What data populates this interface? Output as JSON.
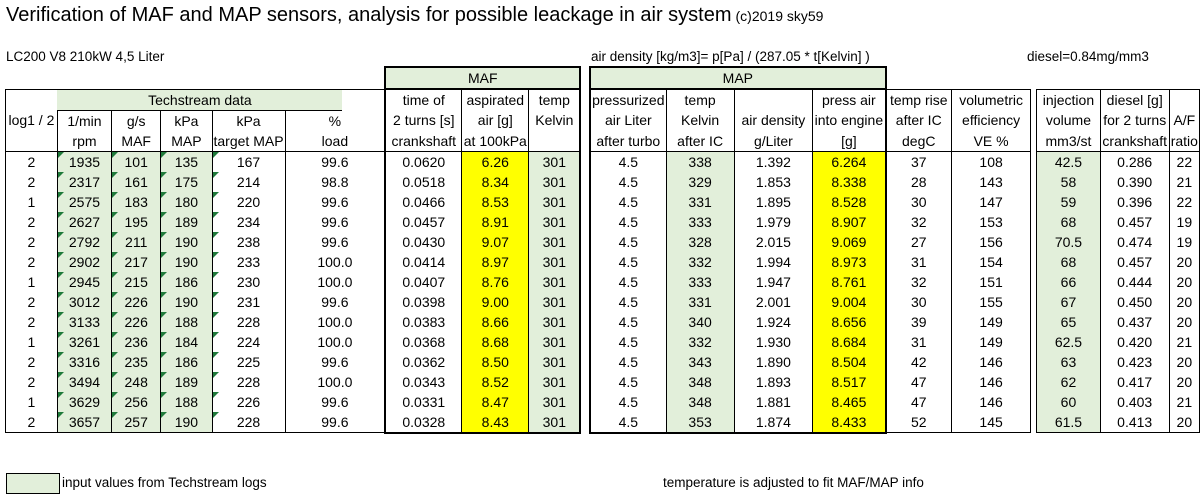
{
  "title": "Verification of MAF and MAP sensors, analysis for possible leackage in air system",
  "copyright": "(c)2019 sky59",
  "vehicle": "LC200 V8 210kW  4,5 Liter",
  "formula": "air density [kg/m3]= p[Pa] / (287.05 * t[Kelvin] )",
  "diesel_density": "diesel=0.84mg/mm3",
  "groups": {
    "maf": "MAF",
    "map": "MAP",
    "techstream": "Techstream data"
  },
  "headers": {
    "log": [
      "log1 / 2",
      ""
    ],
    "rpm": [
      "1/min",
      "rpm"
    ],
    "maf": [
      "g/s",
      "MAF"
    ],
    "map": [
      "kPa",
      "MAP"
    ],
    "target_map": [
      "kPa",
      "target MAP"
    ],
    "load": [
      "%",
      "load"
    ],
    "time": [
      "time of",
      "2 turns [s]",
      "crankshaft"
    ],
    "aspirated": [
      "aspirated",
      "air [g]",
      "at 100kPa"
    ],
    "temp1": [
      "temp",
      "Kelvin",
      ""
    ],
    "pressurized": [
      "pressurized",
      "air Liter",
      "after turbo"
    ],
    "temp2": [
      "temp",
      "Kelvin",
      "after IC"
    ],
    "density": [
      "",
      "air density",
      "g/Liter"
    ],
    "press_air": [
      "press air",
      "into engine",
      "[g]"
    ],
    "temp_rise": [
      "temp rise",
      "after IC",
      "degC"
    ],
    "ve": [
      "volumetric",
      "efficiency",
      "VE %"
    ],
    "injection": [
      "injection",
      "volume",
      "mm3/st"
    ],
    "diesel": [
      "diesel [g]",
      "for 2 turns",
      "crankshaft"
    ],
    "af": [
      "",
      "A/F",
      "ratio"
    ]
  },
  "rows": [
    [
      "2",
      "1935",
      "101",
      "135",
      "167",
      "99.6",
      "0.0620",
      "6.26",
      "301",
      "4.5",
      "338",
      "1.392",
      "6.264",
      "37",
      "108",
      "42.5",
      "0.286",
      "22"
    ],
    [
      "2",
      "2317",
      "161",
      "175",
      "214",
      "98.8",
      "0.0518",
      "8.34",
      "301",
      "4.5",
      "329",
      "1.853",
      "8.338",
      "28",
      "143",
      "58",
      "0.390",
      "21"
    ],
    [
      "1",
      "2575",
      "183",
      "180",
      "220",
      "99.6",
      "0.0466",
      "8.53",
      "301",
      "4.5",
      "331",
      "1.895",
      "8.528",
      "30",
      "147",
      "59",
      "0.396",
      "22"
    ],
    [
      "2",
      "2627",
      "195",
      "189",
      "234",
      "99.6",
      "0.0457",
      "8.91",
      "301",
      "4.5",
      "333",
      "1.979",
      "8.907",
      "32",
      "153",
      "68",
      "0.457",
      "19"
    ],
    [
      "2",
      "2792",
      "211",
      "190",
      "238",
      "99.6",
      "0.0430",
      "9.07",
      "301",
      "4.5",
      "328",
      "2.015",
      "9.069",
      "27",
      "156",
      "70.5",
      "0.474",
      "19"
    ],
    [
      "2",
      "2902",
      "217",
      "190",
      "233",
      "100.0",
      "0.0414",
      "8.97",
      "301",
      "4.5",
      "332",
      "1.994",
      "8.973",
      "31",
      "154",
      "68",
      "0.457",
      "20"
    ],
    [
      "1",
      "2945",
      "215",
      "186",
      "230",
      "100.0",
      "0.0407",
      "8.76",
      "301",
      "4.5",
      "333",
      "1.947",
      "8.761",
      "32",
      "151",
      "66",
      "0.444",
      "20"
    ],
    [
      "2",
      "3012",
      "226",
      "190",
      "231",
      "99.6",
      "0.0398",
      "9.00",
      "301",
      "4.5",
      "331",
      "2.001",
      "9.004",
      "30",
      "155",
      "67",
      "0.450",
      "20"
    ],
    [
      "2",
      "3133",
      "226",
      "188",
      "228",
      "100.0",
      "0.0383",
      "8.66",
      "301",
      "4.5",
      "340",
      "1.924",
      "8.656",
      "39",
      "149",
      "65",
      "0.437",
      "20"
    ],
    [
      "1",
      "3261",
      "236",
      "184",
      "224",
      "100.0",
      "0.0368",
      "8.68",
      "301",
      "4.5",
      "332",
      "1.930",
      "8.684",
      "31",
      "149",
      "62.5",
      "0.420",
      "21"
    ],
    [
      "2",
      "3316",
      "235",
      "186",
      "225",
      "99.6",
      "0.0362",
      "8.50",
      "301",
      "4.5",
      "343",
      "1.890",
      "8.504",
      "42",
      "146",
      "63",
      "0.423",
      "20"
    ],
    [
      "2",
      "3494",
      "248",
      "189",
      "228",
      "100.0",
      "0.0343",
      "8.52",
      "301",
      "4.5",
      "348",
      "1.893",
      "8.517",
      "47",
      "146",
      "62",
      "0.417",
      "20"
    ],
    [
      "1",
      "3629",
      "256",
      "188",
      "226",
      "99.6",
      "0.0331",
      "8.47",
      "301",
      "4.5",
      "348",
      "1.881",
      "8.465",
      "47",
      "146",
      "60",
      "0.403",
      "21"
    ],
    [
      "2",
      "3657",
      "257",
      "190",
      "228",
      "99.6",
      "0.0328",
      "8.43",
      "301",
      "4.5",
      "353",
      "1.874",
      "8.433",
      "52",
      "145",
      "61.5",
      "0.413",
      "20"
    ]
  ],
  "legend": "input values from Techstream logs",
  "footnote": "temperature is adjusted to fit MAF/MAP info",
  "colors": {
    "input_green": "#e2efda",
    "highlight_yellow": "#ffff00"
  }
}
